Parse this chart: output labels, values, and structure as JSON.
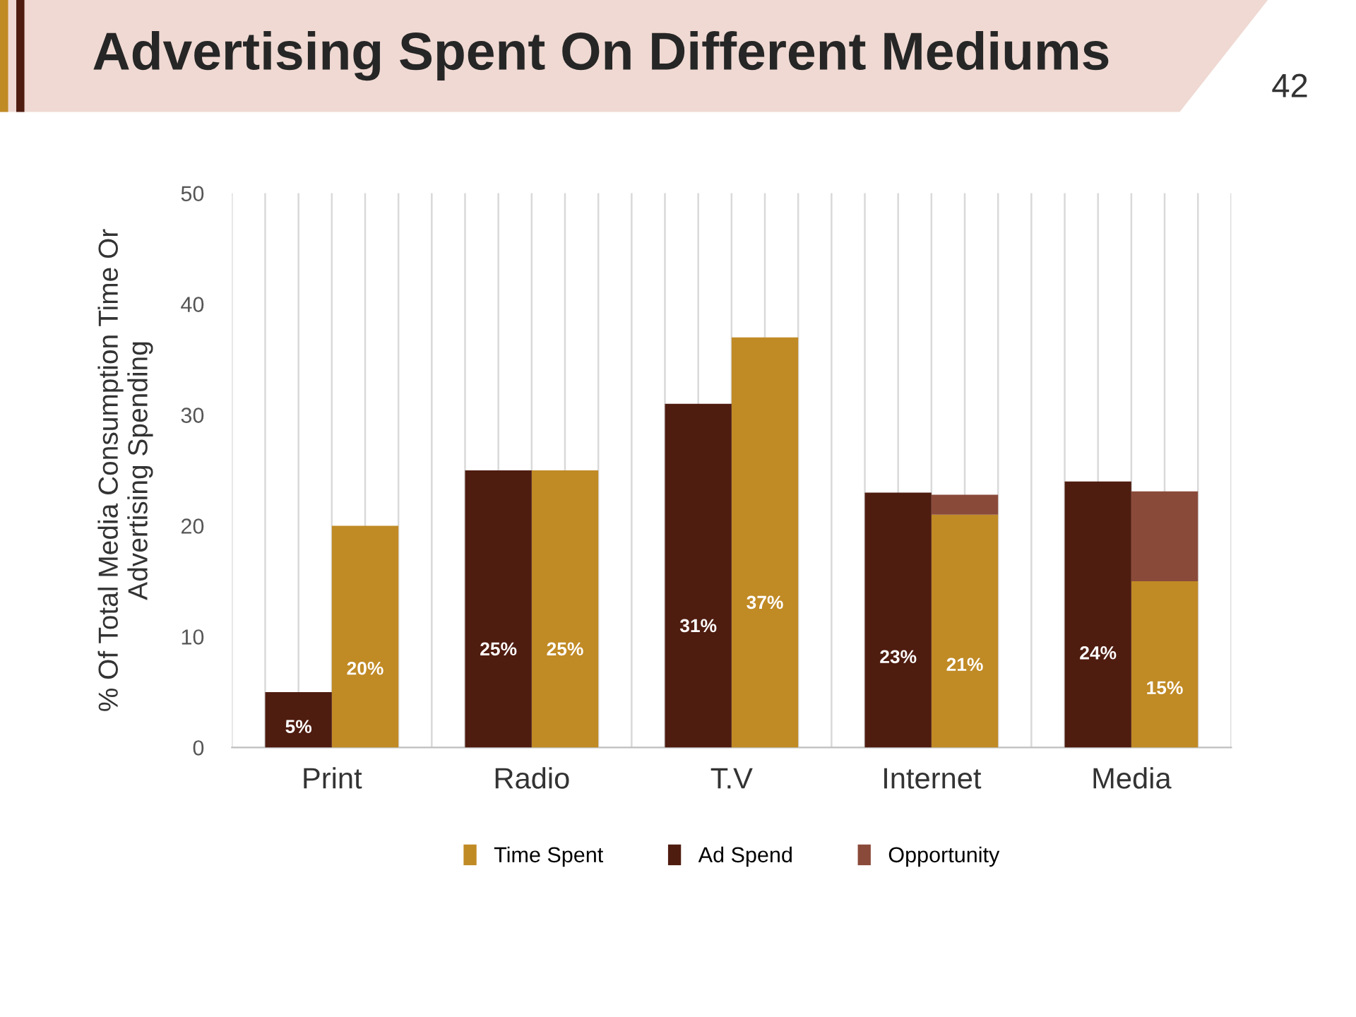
{
  "chart_data": {
    "type": "bar",
    "title": "Advertising Spent On Different Mediums",
    "ylabel": "% Of Total Media Consumption Time Or\nAdvertising Spending",
    "annotations": [
      "42"
    ],
    "categories": [
      "Print",
      "Radio",
      "T.V",
      "Internet",
      "Media"
    ],
    "series": [
      {
        "name": "Time Spent",
        "color": "#c08a25",
        "values": [
          20,
          25,
          37,
          21,
          15
        ],
        "value_labels": [
          "20%",
          "25%",
          "37%",
          "21%",
          "15%"
        ]
      },
      {
        "name": "Ad Spend",
        "color": "#4f1c10",
        "values": [
          5,
          25,
          31,
          23,
          24
        ],
        "value_labels": [
          "5%",
          "25%",
          "31%",
          "23%",
          "24%"
        ]
      },
      {
        "name": "Opportunity",
        "color": "#8a4a3a",
        "values": [
          null,
          null,
          null,
          1.8,
          8.1
        ],
        "base": [
          null,
          null,
          null,
          21,
          15
        ]
      }
    ],
    "ylim": [
      0,
      50
    ],
    "yticks": [
      0,
      10,
      20,
      30,
      40,
      50
    ],
    "grid": "x",
    "legend": "bottom"
  }
}
